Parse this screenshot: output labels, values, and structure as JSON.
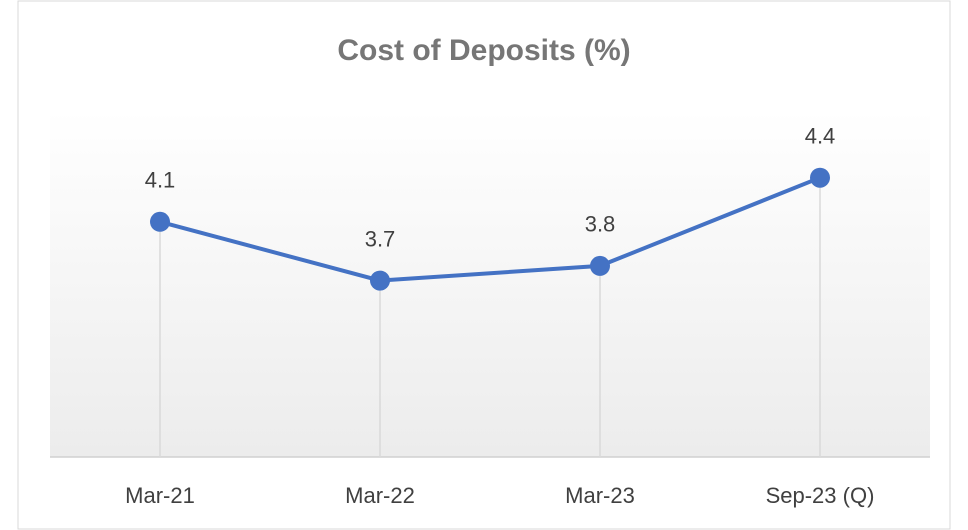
{
  "chart_data": {
    "type": "line",
    "title": "Cost of Deposits (%)",
    "categories": [
      "Mar-21",
      "Mar-22",
      "Mar-23",
      "Sep-23 (Q)"
    ],
    "series": [
      {
        "name": "Cost of Deposits",
        "color": "#4472c4",
        "values": [
          4.1,
          3.7,
          3.8,
          4.4
        ]
      }
    ],
    "ylim": [
      2.5,
      4.5
    ],
    "drop_lines": true
  }
}
